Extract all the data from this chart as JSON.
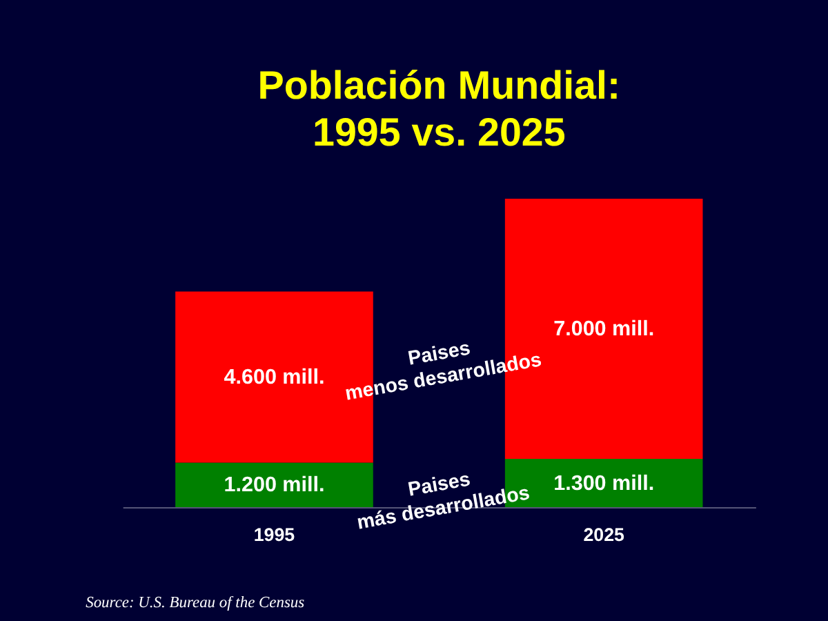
{
  "chart_data": {
    "type": "bar",
    "title": "Población Mundial:\n1995 vs. 2025",
    "categories": [
      "1995",
      "2025"
    ],
    "stacked": true,
    "series": [
      {
        "name": "Paises más desarrollados",
        "color": "#008000",
        "values": [
          1200,
          1300
        ],
        "value_labels": [
          "1.200 mill.",
          "1.300 mill."
        ]
      },
      {
        "name": "Paises menos desarrollados",
        "color": "#ff0000",
        "values": [
          4600,
          7000
        ],
        "value_labels": [
          "4.600 mill.",
          "7.000 mill."
        ]
      }
    ],
    "annotations": [
      "Source: U.S. Bureau of the Census"
    ]
  }
}
